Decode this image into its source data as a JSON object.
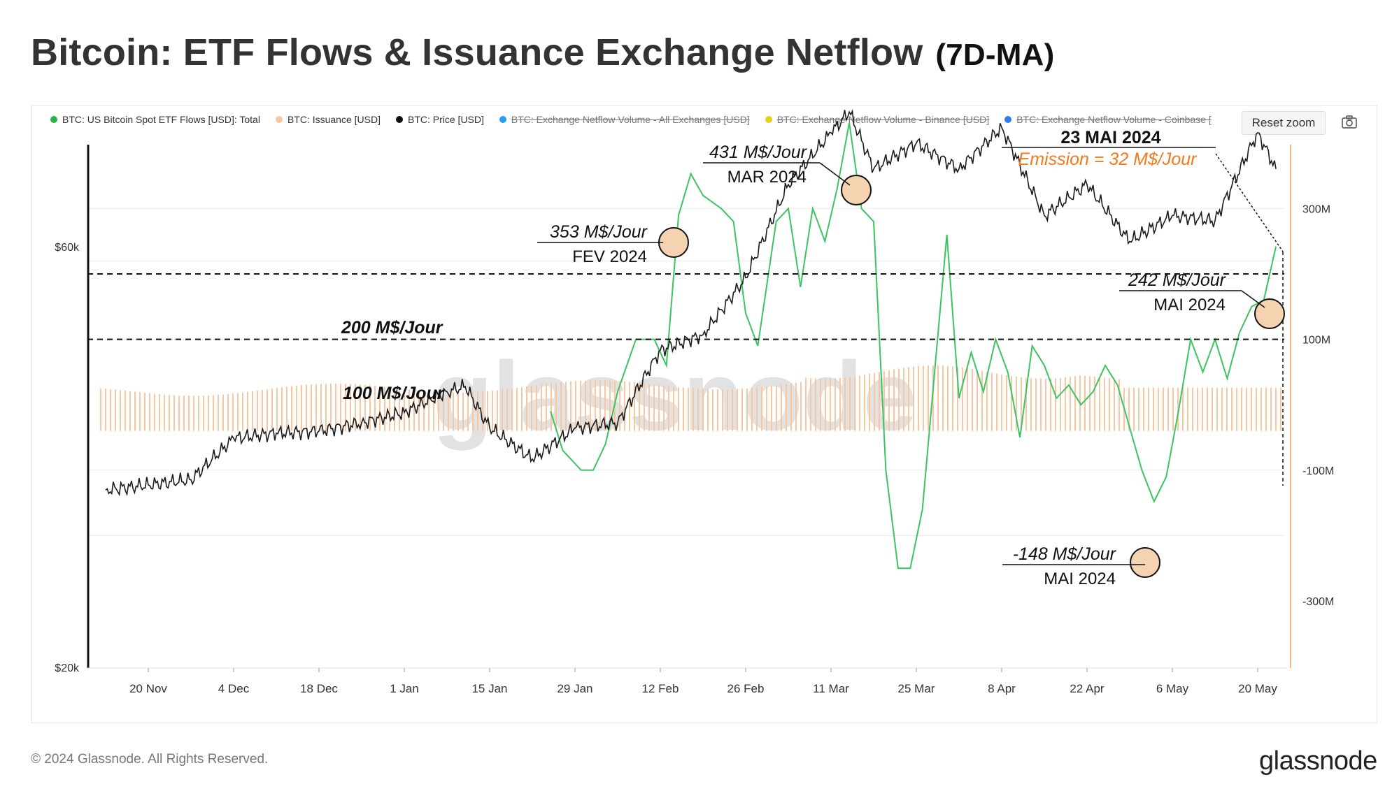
{
  "title": "Bitcoin: ETF Flows & Issuance Exchange Netflow",
  "title_suffix": "(7D-MA)",
  "reset_zoom": "Reset zoom",
  "watermark": "glassnode",
  "footer": "© 2024 Glassnode. All Rights Reserved.",
  "brand": "glassnode",
  "colors": {
    "etf": "#3cc460",
    "issuance": "#f6c7a1",
    "price": "#1b1b1b",
    "accent": "#f07a1a"
  },
  "legend": [
    {
      "label": "BTC: US Bitcoin Spot ETF Flows [USD]: Total",
      "color": "#28b34a",
      "active": true
    },
    {
      "label": "BTC: Issuance [USD]",
      "color": "#f6c7a1",
      "active": true
    },
    {
      "label": "BTC: Price [USD]",
      "color": "#111111",
      "active": true
    },
    {
      "label": "BTC: Exchange Netflow Volume - All Exchanges [USD]",
      "color": "#2a9df4",
      "active": false
    },
    {
      "label": "BTC: Exchange Netflow Volume - Binance [USD]",
      "color": "#e6d21c",
      "active": false
    },
    {
      "label": "BTC: Exchange Netflow Volume - Coinbase [",
      "color": "#2a7ff4",
      "active": false
    }
  ],
  "chart_data": {
    "type": "line",
    "x_ticks": [
      "20 Nov",
      "4 Dec",
      "18 Dec",
      "1 Jan",
      "15 Jan",
      "29 Jan",
      "12 Feb",
      "26 Feb",
      "11 Mar",
      "25 Mar",
      "8 Apr",
      "22 Apr",
      "6 May",
      "20 May"
    ],
    "y_left_ticks": [
      "$60k",
      "$20k"
    ],
    "y_right_ticks": [
      "300M",
      "100M",
      "-100M",
      "-300M"
    ],
    "ylim_right": [
      -300,
      300
    ],
    "series": [
      {
        "name": "BTC: US Bitcoin Spot ETF Flows [USD]: Total",
        "unit": "M USD",
        "points": [
          [
            "2024-01-25",
            -10
          ],
          [
            "2024-01-27",
            -70
          ],
          [
            "2024-01-30",
            -100
          ],
          [
            "2024-02-01",
            -100
          ],
          [
            "2024-02-03",
            -60
          ],
          [
            "2024-02-05",
            20
          ],
          [
            "2024-02-08",
            100
          ],
          [
            "2024-02-11",
            100
          ],
          [
            "2024-02-13",
            60
          ],
          [
            "2024-02-15",
            290
          ],
          [
            "2024-02-17",
            353
          ],
          [
            "2024-02-19",
            320
          ],
          [
            "2024-02-22",
            300
          ],
          [
            "2024-02-24",
            280
          ],
          [
            "2024-02-26",
            140
          ],
          [
            "2024-02-28",
            90
          ],
          [
            "2024-03-02",
            280
          ],
          [
            "2024-03-04",
            300
          ],
          [
            "2024-03-06",
            180
          ],
          [
            "2024-03-08",
            300
          ],
          [
            "2024-03-10",
            250
          ],
          [
            "2024-03-12",
            330
          ],
          [
            "2024-03-14",
            431
          ],
          [
            "2024-03-16",
            300
          ],
          [
            "2024-03-18",
            280
          ],
          [
            "2024-03-20",
            -100
          ],
          [
            "2024-03-22",
            -250
          ],
          [
            "2024-03-24",
            -250
          ],
          [
            "2024-03-26",
            -160
          ],
          [
            "2024-03-28",
            50
          ],
          [
            "2024-03-30",
            260
          ],
          [
            "2024-04-01",
            10
          ],
          [
            "2024-04-03",
            80
          ],
          [
            "2024-04-05",
            20
          ],
          [
            "2024-04-07",
            100
          ],
          [
            "2024-04-09",
            50
          ],
          [
            "2024-04-11",
            -50
          ],
          [
            "2024-04-13",
            90
          ],
          [
            "2024-04-15",
            60
          ],
          [
            "2024-04-17",
            10
          ],
          [
            "2024-04-19",
            30
          ],
          [
            "2024-04-21",
            0
          ],
          [
            "2024-04-23",
            20
          ],
          [
            "2024-04-25",
            60
          ],
          [
            "2024-04-27",
            30
          ],
          [
            "2024-05-01",
            -100
          ],
          [
            "2024-05-03",
            -148
          ],
          [
            "2024-05-05",
            -110
          ],
          [
            "2024-05-07",
            -10
          ],
          [
            "2024-05-09",
            100
          ],
          [
            "2024-05-11",
            50
          ],
          [
            "2024-05-13",
            100
          ],
          [
            "2024-05-15",
            40
          ],
          [
            "2024-05-17",
            110
          ],
          [
            "2024-05-19",
            150
          ],
          [
            "2024-05-21",
            160
          ],
          [
            "2024-05-23",
            242
          ]
        ]
      },
      {
        "name": "BTC: Issuance [USD]",
        "unit": "M USD",
        "note": "bars ~30-60 M$/day"
      },
      {
        "name": "BTC: Price [USD]",
        "unit": "USD",
        "points": [
          [
            "2023-11-13",
            36500
          ],
          [
            "2023-11-20",
            37000
          ],
          [
            "2023-11-27",
            37500
          ],
          [
            "2023-12-04",
            41500
          ],
          [
            "2023-12-11",
            42000
          ],
          [
            "2023-12-18",
            42200
          ],
          [
            "2023-12-25",
            43000
          ],
          [
            "2024-01-01",
            44000
          ],
          [
            "2024-01-08",
            46000
          ],
          [
            "2024-01-11",
            46500
          ],
          [
            "2024-01-15",
            42500
          ],
          [
            "2024-01-22",
            39500
          ],
          [
            "2024-01-29",
            42500
          ],
          [
            "2024-02-05",
            43000
          ],
          [
            "2024-02-12",
            50000
          ],
          [
            "2024-02-19",
            51500
          ],
          [
            "2024-02-26",
            57000
          ],
          [
            "2024-03-04",
            66000
          ],
          [
            "2024-03-11",
            71000
          ],
          [
            "2024-03-14",
            73000
          ],
          [
            "2024-03-18",
            67500
          ],
          [
            "2024-03-25",
            70000
          ],
          [
            "2024-04-01",
            67500
          ],
          [
            "2024-04-08",
            71500
          ],
          [
            "2024-04-15",
            63000
          ],
          [
            "2024-04-22",
            66000
          ],
          [
            "2024-04-29",
            60500
          ],
          [
            "2024-05-06",
            63000
          ],
          [
            "2024-05-13",
            62500
          ],
          [
            "2024-05-20",
            71000
          ],
          [
            "2024-05-23",
            67500
          ]
        ]
      }
    ]
  },
  "annotations": {
    "h200": "200 M$/Jour",
    "h100": "100 M$/Jour",
    "feb_val": "353 M$/Jour",
    "feb_date": "FEV 2024",
    "mar_val": "431 M$/Jour",
    "mar_date": "MAR 2024",
    "may_hi_val": "242 M$/Jour",
    "may_hi_date": "MAI 2024",
    "may_lo_val": "-148 M$/Jour",
    "may_lo_date": "MAI 2024",
    "halving_date": "23 MAI 2024",
    "emission": "Emission = 32 M$/Jour"
  }
}
